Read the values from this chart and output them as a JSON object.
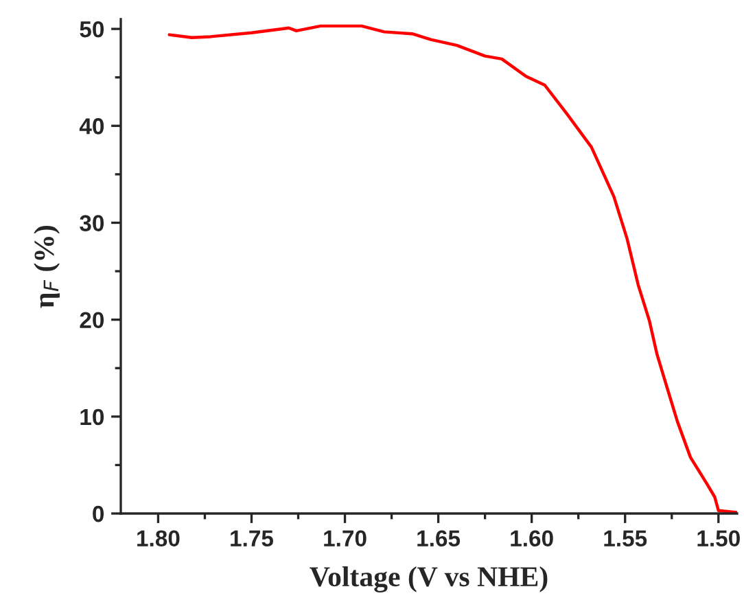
{
  "chart_data": {
    "type": "line",
    "xlabel": "Voltage (V vs NHE)",
    "ylabel": "η$_{F}$ (%)",
    "xlim": [
      1.82,
      1.49
    ],
    "xticks": [
      {
        "value": 1.8,
        "label": "1.80"
      },
      1.75,
      {
        "value": 1.7,
        "label": "1.70"
      },
      1.65,
      {
        "value": 1.6,
        "label": "1.60"
      },
      1.55,
      {
        "value": 1.5,
        "label": "1.50"
      }
    ],
    "ylim": [
      0,
      51
    ],
    "yticks": [
      0,
      10,
      20,
      30,
      40,
      50
    ],
    "grid": false,
    "marker": "none",
    "line_style": "solid",
    "series": [
      {
        "color": "#ff0000",
        "x": [
          1.794,
          1.782,
          1.772,
          1.75,
          1.73,
          1.726,
          1.713,
          1.691,
          1.679,
          1.664,
          1.654,
          1.64,
          1.625,
          1.616,
          1.603,
          1.593,
          1.581,
          1.568,
          1.556,
          1.549,
          1.543,
          1.537,
          1.533,
          1.528,
          1.522,
          1.515,
          1.506,
          1.502,
          1.5,
          1.49
        ],
        "values": [
          49.4,
          49.1,
          49.2,
          49.6,
          50.1,
          49.8,
          50.3,
          50.3,
          49.7,
          49.5,
          48.9,
          48.3,
          47.2,
          46.9,
          45.1,
          44.2,
          41.2,
          37.8,
          32.7,
          28.4,
          23.6,
          19.9,
          16.5,
          13.3,
          9.5,
          5.8,
          3.0,
          1.7,
          0.3,
          0.1
        ]
      }
    ]
  }
}
